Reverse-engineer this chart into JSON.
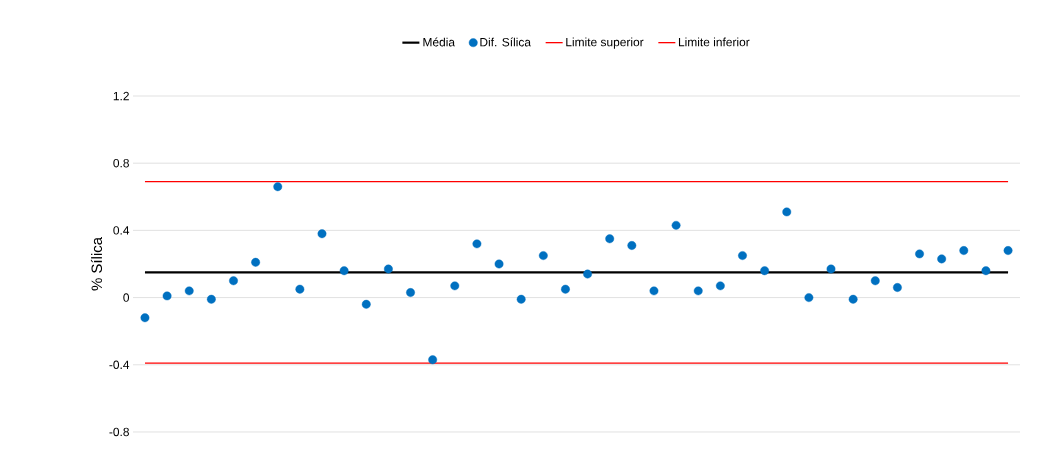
{
  "chart_data": {
    "type": "scatter",
    "ylabel": "% Sílica",
    "categories": [
      null,
      null,
      null,
      null,
      null,
      null,
      null,
      null,
      null,
      null,
      null,
      null,
      null,
      null,
      null,
      null,
      null,
      null,
      null,
      null,
      null,
      null,
      null,
      null,
      null,
      null,
      null,
      null,
      null,
      null,
      null,
      null,
      null,
      null,
      null,
      null,
      null,
      null,
      null,
      null
    ],
    "series": [
      {
        "name": "Média",
        "type": "line",
        "color": "#000000",
        "values": [
          0.15,
          0.15,
          0.15,
          0.15,
          0.15,
          0.15,
          0.15,
          0.15,
          0.15,
          0.15,
          0.15,
          0.15,
          0.15,
          0.15,
          0.15,
          0.15,
          0.15,
          0.15,
          0.15,
          0.15,
          0.15,
          0.15,
          0.15,
          0.15,
          0.15,
          0.15,
          0.15,
          0.15,
          0.15,
          0.15,
          0.15,
          0.15,
          0.15,
          0.15,
          0.15,
          0.15,
          0.15,
          0.15,
          0.15,
          0.15
        ]
      },
      {
        "name": "Dif. Sílica",
        "color": "#0070c0",
        "values": [
          -0.12,
          0.01,
          0.04,
          -0.01,
          0.1,
          0.21,
          0.66,
          0.05,
          0.38,
          0.16,
          -0.04,
          0.17,
          0.03,
          -0.37,
          0.07,
          0.32,
          0.2,
          -0.01,
          0.25,
          0.05,
          0.14,
          0.35,
          0.31,
          0.04,
          0.43,
          0.04,
          0.07,
          0.25,
          0.16,
          0.51,
          0.0,
          0.17,
          -0.01,
          0.1,
          0.06,
          0.26,
          0.23,
          0.28,
          0.16,
          0.28
        ]
      },
      {
        "name": "Limite superior",
        "type": "line",
        "color": "#ff0000",
        "values": [
          0.69,
          0.69,
          0.69,
          0.69,
          0.69,
          0.69,
          0.69,
          0.69,
          0.69,
          0.69,
          0.69,
          0.69,
          0.69,
          0.69,
          0.69,
          0.69,
          0.69,
          0.69,
          0.69,
          0.69,
          0.69,
          0.69,
          0.69,
          0.69,
          0.69,
          0.69,
          0.69,
          0.69,
          0.69,
          0.69,
          0.69,
          0.69,
          0.69,
          0.69,
          0.69,
          0.69,
          0.69,
          0.69,
          0.69,
          0.69
        ]
      },
      {
        "name": "Limite inferior",
        "type": "line",
        "color": "#ff0000",
        "values": [
          -0.39,
          -0.39,
          -0.39,
          -0.39,
          -0.39,
          -0.39,
          -0.39,
          -0.39,
          -0.39,
          -0.39,
          -0.39,
          -0.39,
          -0.39,
          -0.39,
          -0.39,
          -0.39,
          -0.39,
          -0.39,
          -0.39,
          -0.39,
          -0.39,
          -0.39,
          -0.39,
          -0.39,
          -0.39,
          -0.39,
          -0.39,
          -0.39,
          -0.39,
          -0.39,
          -0.39,
          -0.39,
          -0.39,
          -0.39,
          -0.39,
          -0.39,
          -0.39,
          -0.39,
          -0.39,
          -0.39
        ]
      }
    ],
    "ylim": [
      -0.8,
      1.2
    ],
    "yticks": [
      -0.8,
      -0.4,
      0,
      0.4,
      0.8,
      1.2
    ],
    "grid": "y",
    "legend": "top",
    "tick_labels": "y"
  }
}
